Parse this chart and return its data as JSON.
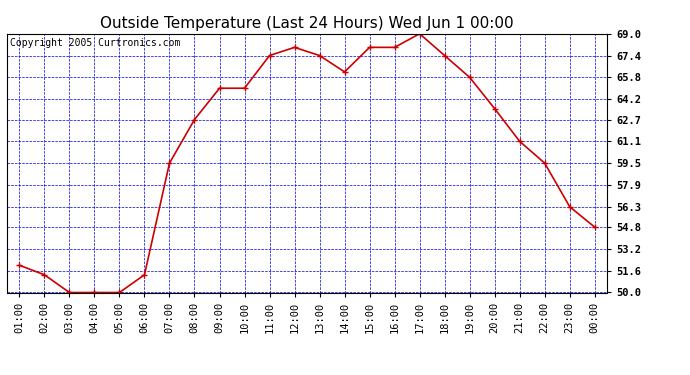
{
  "title": "Outside Temperature (Last 24 Hours) Wed Jun 1 00:00",
  "copyright": "Copyright 2005 Curtronics.com",
  "x_labels": [
    "01:00",
    "02:00",
    "03:00",
    "04:00",
    "05:00",
    "06:00",
    "07:00",
    "08:00",
    "09:00",
    "10:00",
    "11:00",
    "12:00",
    "13:00",
    "14:00",
    "15:00",
    "16:00",
    "17:00",
    "18:00",
    "19:00",
    "20:00",
    "21:00",
    "22:00",
    "23:00",
    "00:00"
  ],
  "y_values": [
    52.0,
    51.3,
    50.0,
    50.0,
    50.0,
    51.3,
    59.5,
    62.7,
    65.0,
    65.0,
    67.4,
    68.0,
    67.4,
    66.2,
    68.0,
    68.0,
    69.0,
    67.4,
    65.8,
    63.5,
    61.1,
    59.5,
    56.3,
    54.8
  ],
  "line_color": "#cc0000",
  "marker_color": "#cc0000",
  "bg_color": "#ffffff",
  "plot_bg_color": "#ffffff",
  "grid_color": "#0000cc",
  "title_fontsize": 11,
  "copyright_fontsize": 7,
  "tick_fontsize": 7.5,
  "ylim": [
    50.0,
    69.0
  ],
  "yticks": [
    50.0,
    51.6,
    53.2,
    54.8,
    56.3,
    57.9,
    59.5,
    61.1,
    62.7,
    64.2,
    65.8,
    67.4,
    69.0
  ]
}
